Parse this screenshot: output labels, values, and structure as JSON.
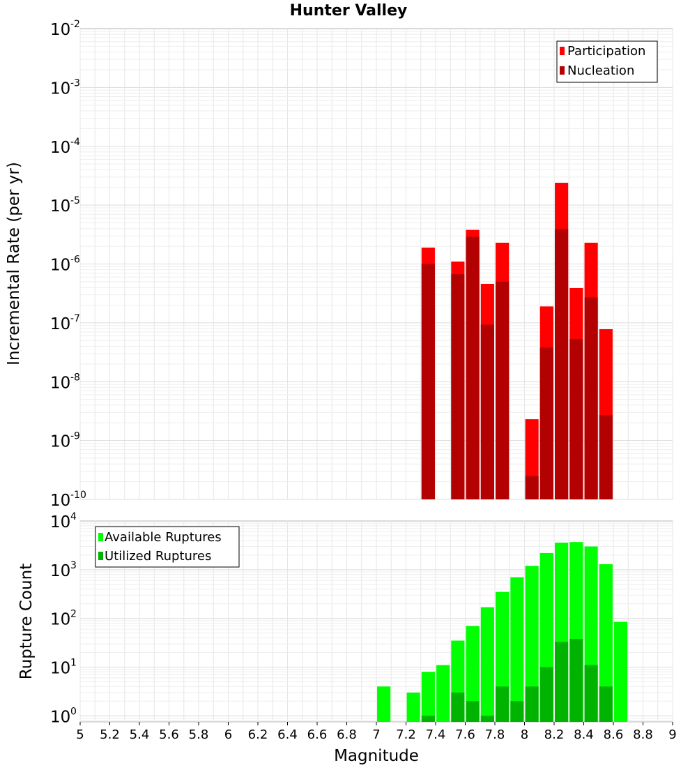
{
  "chart_data": [
    {
      "type": "bar",
      "title": "Hunter Valley",
      "ylabel": "Incremental Rate (per yr)",
      "xlabel": "",
      "yscale": "log",
      "ylim": [
        1e-10,
        0.01
      ],
      "xlim": [
        5,
        9
      ],
      "ytick_bases": [
        "10",
        "10",
        "10",
        "10",
        "10",
        "10",
        "10",
        "10",
        "10"
      ],
      "ytick_exponents": [
        "-10",
        "-9",
        "-8",
        "-7",
        "-6",
        "-5",
        "-4",
        "-3",
        "-2"
      ],
      "grid": true,
      "legend_position": "top-right",
      "bar_width": 0.09,
      "series": [
        {
          "name": "Participation",
          "color": "#ff0000",
          "x": [
            7.35,
            7.55,
            7.65,
            7.75,
            7.85,
            8.05,
            8.15,
            8.25,
            8.35,
            8.45,
            8.55
          ],
          "values": [
            1.9e-06,
            1.1e-06,
            3.8e-06,
            4.6e-07,
            2.3e-06,
            2.3e-09,
            1.9e-07,
            2.4e-05,
            3.9e-07,
            2.3e-06,
            7.8e-08
          ]
        },
        {
          "name": "Nucleation",
          "color": "#b30000",
          "x": [
            7.35,
            7.55,
            7.65,
            7.75,
            7.85,
            8.05,
            8.15,
            8.25,
            8.35,
            8.45,
            8.55
          ],
          "values": [
            1e-06,
            6.7e-07,
            2.9e-06,
            9.3e-08,
            5e-07,
            2.5e-10,
            3.8e-08,
            3.9e-06,
            5.3e-08,
            2.7e-07,
            2.7e-09
          ]
        }
      ]
    },
    {
      "type": "bar",
      "title": "",
      "ylabel": "Rupture Count",
      "xlabel": "Magnitude",
      "yscale": "log",
      "ylim": [
        0.75,
        10000
      ],
      "xlim": [
        5,
        9
      ],
      "ytick_bases": [
        "10",
        "10",
        "10",
        "10",
        "10"
      ],
      "ytick_exponents": [
        "0",
        "1",
        "2",
        "3",
        "4"
      ],
      "xtick_labels": [
        "5",
        "5.2",
        "5.4",
        "5.6",
        "5.8",
        "6",
        "6.2",
        "6.4",
        "6.6",
        "6.8",
        "7",
        "7.2",
        "7.4",
        "7.6",
        "7.8",
        "8",
        "8.2",
        "8.4",
        "8.6",
        "8.8",
        "9"
      ],
      "grid": true,
      "legend_position": "top-left",
      "bar_width": 0.09,
      "series": [
        {
          "name": "Available Ruptures",
          "color": "#00ff00",
          "x": [
            7.05,
            7.25,
            7.35,
            7.45,
            7.55,
            7.65,
            7.75,
            7.85,
            7.95,
            8.05,
            8.15,
            8.25,
            8.35,
            8.45,
            8.55,
            8.65
          ],
          "values": [
            4,
            3,
            8,
            11,
            35,
            70,
            170,
            350,
            700,
            1200,
            2200,
            3600,
            3700,
            3000,
            1300,
            85
          ]
        },
        {
          "name": "Utilized Ruptures",
          "color": "#00b300",
          "x": [
            7.05,
            7.25,
            7.35,
            7.45,
            7.55,
            7.65,
            7.75,
            7.85,
            7.95,
            8.05,
            8.15,
            8.25,
            8.35,
            8.45,
            8.55,
            8.65
          ],
          "values": [
            0,
            0,
            1,
            0,
            3,
            2,
            1,
            4,
            2,
            4,
            10,
            33,
            38,
            11,
            4,
            0
          ]
        }
      ]
    }
  ]
}
